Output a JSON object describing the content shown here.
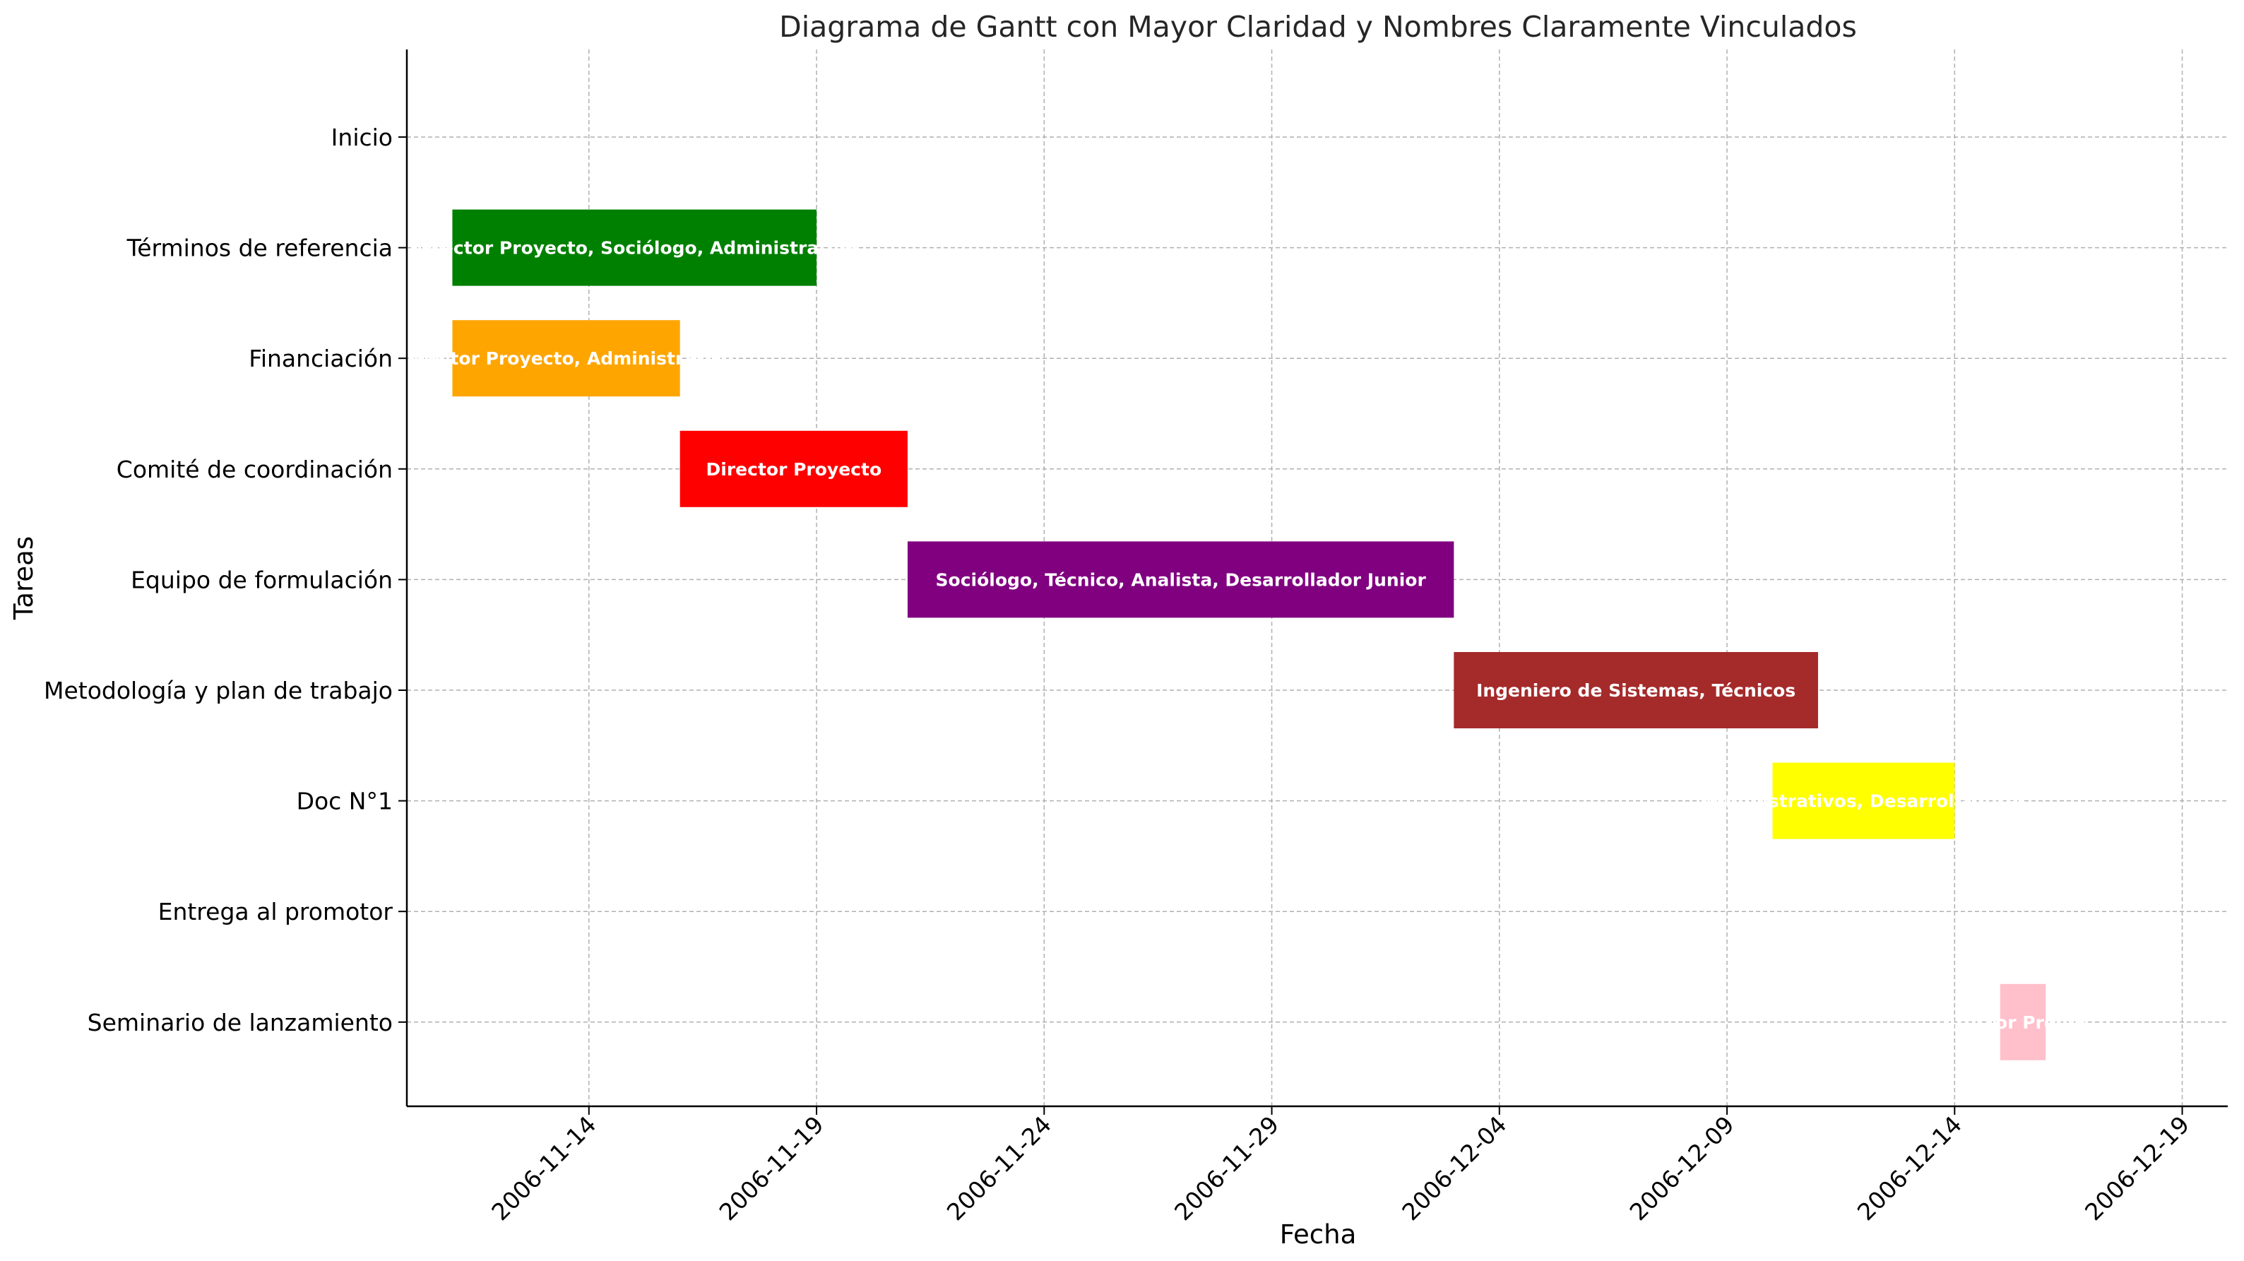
{
  "chart_data": {
    "type": "gantt",
    "title": "Diagrama de Gantt con Mayor Claridad y Nombres Claramente Vinculados",
    "xlabel": "Fecha",
    "ylabel": "Tareas",
    "x_ticks": [
      "2006-11-14",
      "2006-11-19",
      "2006-11-24",
      "2006-11-29",
      "2006-12-04",
      "2006-12-09",
      "2006-12-14",
      "2006-12-19"
    ],
    "xlim": [
      "2006-11-10",
      "2006-12-20"
    ],
    "grid": true,
    "tasks": [
      {
        "name": "Inicio",
        "start": "2006-11-10",
        "end": "2006-11-10",
        "label": "",
        "color": "#ffffff"
      },
      {
        "name": "Términos de referencia",
        "start": "2006-11-11",
        "end": "2006-11-19",
        "label": "Director Proyecto, Sociólogo, Administrativo",
        "color": "#008000"
      },
      {
        "name": "Financiación",
        "start": "2006-11-11",
        "end": "2006-11-16",
        "label": "Director Proyecto, Administrativo",
        "color": "#ffa500"
      },
      {
        "name": "Comité de coordinación",
        "start": "2006-11-16",
        "end": "2006-11-21",
        "label": "Director Proyecto",
        "color": "#ff0000"
      },
      {
        "name": "Equipo de formulación",
        "start": "2006-11-21",
        "end": "2006-12-03",
        "label": "Sociólogo, Técnico, Analista, Desarrollador Junior",
        "color": "#800080"
      },
      {
        "name": "Metodología y plan de trabajo",
        "start": "2006-12-03",
        "end": "2006-12-11",
        "label": "Ingeniero de Sistemas, Técnicos",
        "color": "#a52a2a"
      },
      {
        "name": "Doc N°1",
        "start": "2006-12-10",
        "end": "2006-12-14",
        "label": "Administrativos, Desarrolladores",
        "color": "#ffff00"
      },
      {
        "name": "Entrega al promotor",
        "start": "2006-12-14",
        "end": "2006-12-14",
        "label": "",
        "color": "#ffffff"
      },
      {
        "name": "Seminario de lanzamiento",
        "start": "2006-12-15",
        "end": "2006-12-16",
        "label": "Director Proyecto",
        "color": "#ffc0cb"
      }
    ]
  }
}
